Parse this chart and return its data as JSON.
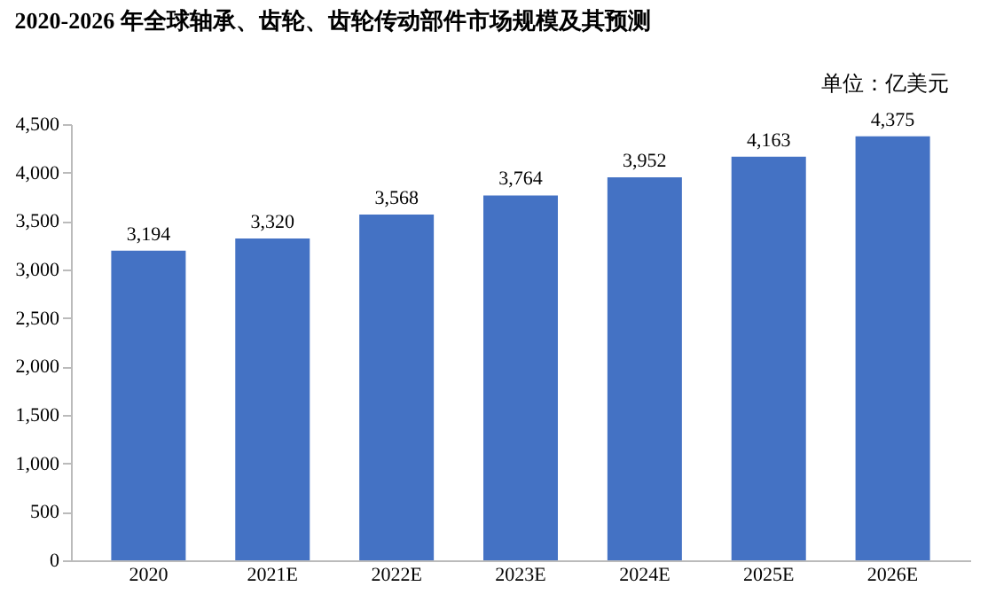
{
  "chart_data": {
    "type": "bar",
    "title": "2020-2026 年全球轴承、齿轮、齿轮传动部件市场规模及其预测",
    "annotations": [
      "单位：亿美元"
    ],
    "categories": [
      "2020",
      "2021E",
      "2022E",
      "2023E",
      "2024E",
      "2025E",
      "2026E"
    ],
    "values": [
      3194,
      3320,
      3568,
      3764,
      3952,
      4163,
      4375
    ],
    "color": "#4472c4",
    "value_labels": [
      "3,194",
      "3,320",
      "3,568",
      "3,764",
      "3,952",
      "4,163",
      "4,375"
    ],
    "ylim": [
      0,
      4500
    ],
    "yticks": [
      0,
      500,
      {
        "value": 1000,
        "label": "1,000"
      },
      {
        "value": 1500,
        "label": "1,500"
      },
      {
        "value": 2000,
        "label": "2,000"
      },
      {
        "value": 2500,
        "label": "2,500"
      },
      {
        "value": 3000,
        "label": "3,000"
      },
      {
        "value": 3500,
        "label": "3,500"
      },
      {
        "value": 4000,
        "label": "4,000"
      },
      {
        "value": 4500,
        "label": "4,500"
      }
    ],
    "data_labels": true,
    "grid": false
  }
}
